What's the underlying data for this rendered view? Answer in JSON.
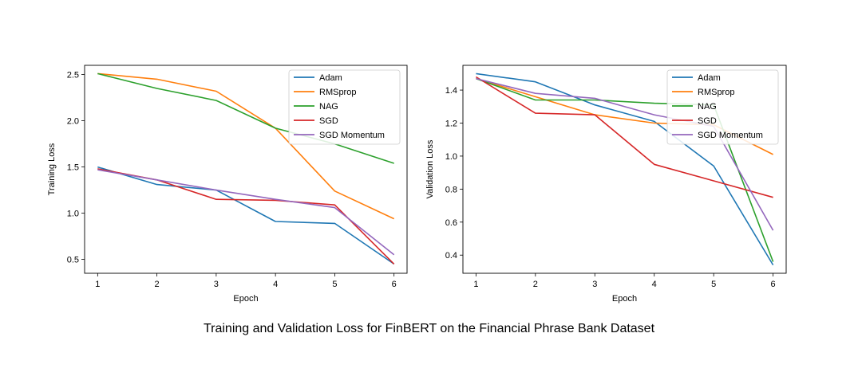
{
  "caption": "Training and Validation Loss for FinBERT on the Financial Phrase Bank Dataset",
  "chart_data": [
    {
      "type": "line",
      "xlabel": "Epoch",
      "ylabel": "Training Loss",
      "x": [
        1,
        2,
        3,
        4,
        5,
        6
      ],
      "xlim": [
        0.78,
        6.22
      ],
      "ylim": [
        0.35,
        2.6
      ],
      "xticks": [
        1,
        2,
        3,
        4,
        5,
        6
      ],
      "yticks": [
        "0.5",
        "1.0",
        "1.5",
        "2.0",
        "2.5"
      ],
      "legend_position": "top-right",
      "grid": false,
      "series": [
        {
          "name": "Adam",
          "color": "#1f77b4",
          "values": [
            1.5,
            1.31,
            1.25,
            0.91,
            0.89,
            0.45
          ]
        },
        {
          "name": "RMSprop",
          "color": "#ff7f0e",
          "values": [
            2.51,
            2.45,
            2.32,
            1.92,
            1.24,
            0.94
          ]
        },
        {
          "name": "NAG",
          "color": "#2ca02c",
          "values": [
            2.51,
            2.35,
            2.22,
            1.92,
            1.75,
            1.54
          ]
        },
        {
          "name": "SGD",
          "color": "#d62728",
          "values": [
            1.48,
            1.36,
            1.15,
            1.14,
            1.09,
            0.45
          ]
        },
        {
          "name": "SGD Momentum",
          "color": "#9467bd",
          "values": [
            1.47,
            1.36,
            1.25,
            1.15,
            1.06,
            0.55
          ]
        }
      ]
    },
    {
      "type": "line",
      "xlabel": "Epoch",
      "ylabel": "Validation Loss",
      "x": [
        1,
        2,
        3,
        4,
        5,
        6
      ],
      "xlim": [
        0.78,
        6.22
      ],
      "ylim": [
        0.29,
        1.55
      ],
      "xticks": [
        1,
        2,
        3,
        4,
        5,
        6
      ],
      "yticks": [
        "0.4",
        "0.6",
        "0.8",
        "1.0",
        "1.2",
        "1.4"
      ],
      "legend_position": "top-right",
      "grid": false,
      "series": [
        {
          "name": "Adam",
          "color": "#1f77b4",
          "values": [
            1.5,
            1.45,
            1.31,
            1.21,
            0.94,
            0.34
          ]
        },
        {
          "name": "RMSprop",
          "color": "#ff7f0e",
          "values": [
            1.47,
            1.36,
            1.25,
            1.2,
            1.19,
            1.01
          ]
        },
        {
          "name": "NAG",
          "color": "#2ca02c",
          "values": [
            1.47,
            1.34,
            1.34,
            1.32,
            1.31,
            0.36
          ]
        },
        {
          "name": "SGD",
          "color": "#d62728",
          "values": [
            1.48,
            1.26,
            1.25,
            0.95,
            0.85,
            0.75
          ]
        },
        {
          "name": "SGD Momentum",
          "color": "#9467bd",
          "values": [
            1.47,
            1.38,
            1.35,
            1.25,
            1.18,
            0.55
          ]
        }
      ]
    }
  ]
}
